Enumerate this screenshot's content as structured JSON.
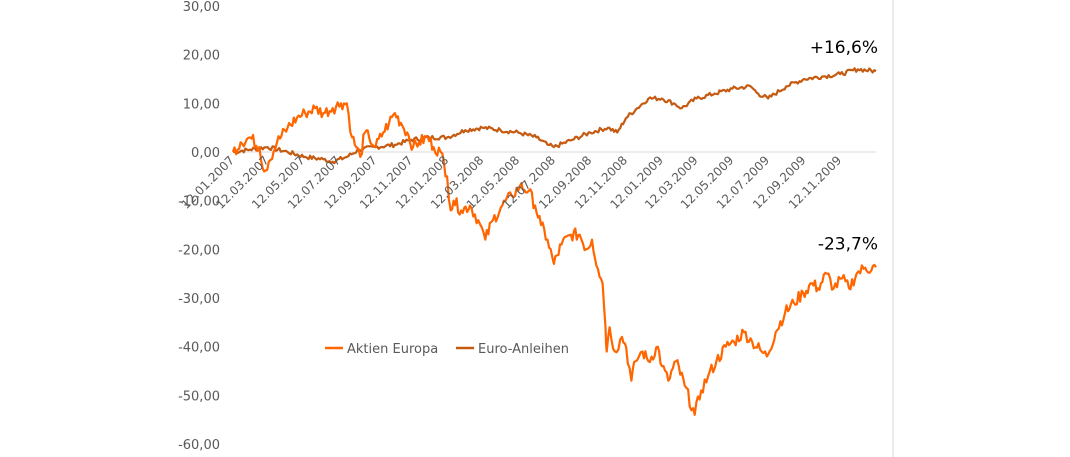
{
  "chart_data": {
    "type": "line",
    "title": "",
    "xlabel": "",
    "ylabel": "",
    "ylim": [
      -60,
      30
    ],
    "y_ticks": [
      "30,00",
      "20,00",
      "10,00",
      "0,00",
      "-10,00",
      "-20,00",
      "-30,00",
      "-40,00",
      "-50,00",
      "-60,00"
    ],
    "y_tick_values": [
      30,
      20,
      10,
      0,
      -10,
      -20,
      -30,
      -40,
      -50,
      -60
    ],
    "x_range": [
      "2007-01-12",
      "2010-01-12"
    ],
    "x_ticks": [
      "12.01.2007",
      "12.03.2007",
      "12.05.2007",
      "12.07.2007",
      "12.09.2007",
      "12.11.2007",
      "12.01.2008",
      "12.03.2008",
      "12.05.2008",
      "12.07.2008",
      "12.09.2008",
      "12.11.2008",
      "12.01.2009",
      "12.03.2009",
      "12.05.2009",
      "12.07.2009",
      "12.09.2009",
      "12.11.2009"
    ],
    "x_tick_dates": [
      "2007-01-12",
      "2007-03-12",
      "2007-05-12",
      "2007-07-12",
      "2007-09-12",
      "2007-11-12",
      "2008-01-12",
      "2008-03-12",
      "2008-05-12",
      "2008-07-12",
      "2008-09-12",
      "2008-11-12",
      "2009-01-12",
      "2009-03-12",
      "2009-05-12",
      "2009-07-12",
      "2009-09-12",
      "2009-11-12"
    ],
    "legend_position": "center-left",
    "grid": false,
    "series": [
      {
        "name": "Aktien Europa",
        "color": "#FF6600",
        "points": [
          [
            "2007-01-12",
            0
          ],
          [
            "2007-01-25",
            2
          ],
          [
            "2007-02-10",
            3
          ],
          [
            "2007-02-26",
            1
          ],
          [
            "2007-03-06",
            -4
          ],
          [
            "2007-03-14",
            -2
          ],
          [
            "2007-03-28",
            2
          ],
          [
            "2007-04-15",
            5
          ],
          [
            "2007-05-01",
            7
          ],
          [
            "2007-05-15",
            8
          ],
          [
            "2007-06-01",
            9
          ],
          [
            "2007-06-15",
            8
          ],
          [
            "2007-07-01",
            9
          ],
          [
            "2007-07-15",
            10
          ],
          [
            "2007-07-25",
            10
          ],
          [
            "2007-08-03",
            3
          ],
          [
            "2007-08-10",
            1
          ],
          [
            "2007-08-17",
            -1
          ],
          [
            "2007-08-25",
            4
          ],
          [
            "2007-09-01",
            3
          ],
          [
            "2007-09-12",
            1
          ],
          [
            "2007-09-25",
            4
          ],
          [
            "2007-10-05",
            6
          ],
          [
            "2007-10-15",
            8
          ],
          [
            "2007-10-25",
            6
          ],
          [
            "2007-11-05",
            4
          ],
          [
            "2007-11-15",
            1
          ],
          [
            "2007-11-25",
            2
          ],
          [
            "2007-12-10",
            3
          ],
          [
            "2007-12-20",
            1
          ],
          [
            "2008-01-01",
            0
          ],
          [
            "2008-01-12",
            -5
          ],
          [
            "2008-01-18",
            -12
          ],
          [
            "2008-01-23",
            -10
          ],
          [
            "2008-02-05",
            -12
          ],
          [
            "2008-02-20",
            -11
          ],
          [
            "2008-03-05",
            -14
          ],
          [
            "2008-03-17",
            -18
          ],
          [
            "2008-03-30",
            -14
          ],
          [
            "2008-04-15",
            -11
          ],
          [
            "2008-05-01",
            -9
          ],
          [
            "2008-05-15",
            -7
          ],
          [
            "2008-05-30",
            -8
          ],
          [
            "2008-06-10",
            -11
          ],
          [
            "2008-06-20",
            -15
          ],
          [
            "2008-07-01",
            -18
          ],
          [
            "2008-07-12",
            -23
          ],
          [
            "2008-07-25",
            -19
          ],
          [
            "2008-08-10",
            -17
          ],
          [
            "2008-08-25",
            -17
          ],
          [
            "2008-09-05",
            -20
          ],
          [
            "2008-09-15",
            -18
          ],
          [
            "2008-09-25",
            -24
          ],
          [
            "2008-10-03",
            -27
          ],
          [
            "2008-10-08",
            -36
          ],
          [
            "2008-10-10",
            -41
          ],
          [
            "2008-10-15",
            -36
          ],
          [
            "2008-10-24",
            -41
          ],
          [
            "2008-11-05",
            -38
          ],
          [
            "2008-11-12",
            -40
          ],
          [
            "2008-11-21",
            -47
          ],
          [
            "2008-11-28",
            -43
          ],
          [
            "2008-12-10",
            -41
          ],
          [
            "2008-12-20",
            -43
          ],
          [
            "2009-01-05",
            -40
          ],
          [
            "2009-01-12",
            -44
          ],
          [
            "2009-01-23",
            -47
          ],
          [
            "2009-02-05",
            -43
          ],
          [
            "2009-02-20",
            -48
          ],
          [
            "2009-03-09",
            -54
          ],
          [
            "2009-03-20",
            -49
          ],
          [
            "2009-04-01",
            -46
          ],
          [
            "2009-04-15",
            -43
          ],
          [
            "2009-05-01",
            -40
          ],
          [
            "2009-05-15",
            -39
          ],
          [
            "2009-06-01",
            -37
          ],
          [
            "2009-06-15",
            -39
          ],
          [
            "2009-07-01",
            -41
          ],
          [
            "2009-07-10",
            -42
          ],
          [
            "2009-07-25",
            -37
          ],
          [
            "2009-08-10",
            -33
          ],
          [
            "2009-08-25",
            -31
          ],
          [
            "2009-09-10",
            -29
          ],
          [
            "2009-09-25",
            -27
          ],
          [
            "2009-10-05",
            -28
          ],
          [
            "2009-10-20",
            -25
          ],
          [
            "2009-11-01",
            -28
          ],
          [
            "2009-11-15",
            -26
          ],
          [
            "2009-11-27",
            -28
          ],
          [
            "2009-12-10",
            -25
          ],
          [
            "2009-12-22",
            -24
          ],
          [
            "2010-01-12",
            -23.7
          ]
        ]
      },
      {
        "name": "Euro-Anleihen",
        "color": "#C55A11",
        "points": [
          [
            "2007-01-12",
            0
          ],
          [
            "2007-02-10",
            0.5
          ],
          [
            "2007-03-12",
            1
          ],
          [
            "2007-04-15",
            0
          ],
          [
            "2007-05-15",
            -1
          ],
          [
            "2007-06-15",
            -1.5
          ],
          [
            "2007-07-01",
            -2
          ],
          [
            "2007-07-25",
            -1
          ],
          [
            "2007-08-15",
            0.5
          ],
          [
            "2007-09-12",
            1
          ],
          [
            "2007-10-15",
            1.5
          ],
          [
            "2007-11-12",
            2.5
          ],
          [
            "2007-12-12",
            3
          ],
          [
            "2008-01-12",
            3
          ],
          [
            "2008-02-12",
            4.5
          ],
          [
            "2008-03-12",
            5
          ],
          [
            "2008-04-12",
            4.5
          ],
          [
            "2008-05-12",
            4
          ],
          [
            "2008-06-12",
            3
          ],
          [
            "2008-07-01",
            1.5
          ],
          [
            "2008-07-12",
            1
          ],
          [
            "2008-08-12",
            2.5
          ],
          [
            "2008-09-12",
            4
          ],
          [
            "2008-10-12",
            5
          ],
          [
            "2008-10-28",
            4
          ],
          [
            "2008-11-12",
            7
          ],
          [
            "2008-12-01",
            9
          ],
          [
            "2008-12-20",
            11
          ],
          [
            "2009-01-12",
            11
          ],
          [
            "2009-02-01",
            10
          ],
          [
            "2009-02-15",
            9
          ],
          [
            "2009-03-12",
            11
          ],
          [
            "2009-04-12",
            12
          ],
          [
            "2009-05-12",
            13
          ],
          [
            "2009-06-12",
            13.5
          ],
          [
            "2009-06-25",
            12
          ],
          [
            "2009-07-12",
            11
          ],
          [
            "2009-08-12",
            13.5
          ],
          [
            "2009-09-12",
            15
          ],
          [
            "2009-10-12",
            15.5
          ],
          [
            "2009-11-12",
            16
          ],
          [
            "2009-12-12",
            17
          ],
          [
            "2010-01-12",
            16.6
          ]
        ]
      }
    ],
    "annotations": [
      {
        "text": "+16,6%",
        "series": "Euro-Anleihen"
      },
      {
        "text": "-23,7%",
        "series": "Aktien Europa"
      }
    ]
  }
}
